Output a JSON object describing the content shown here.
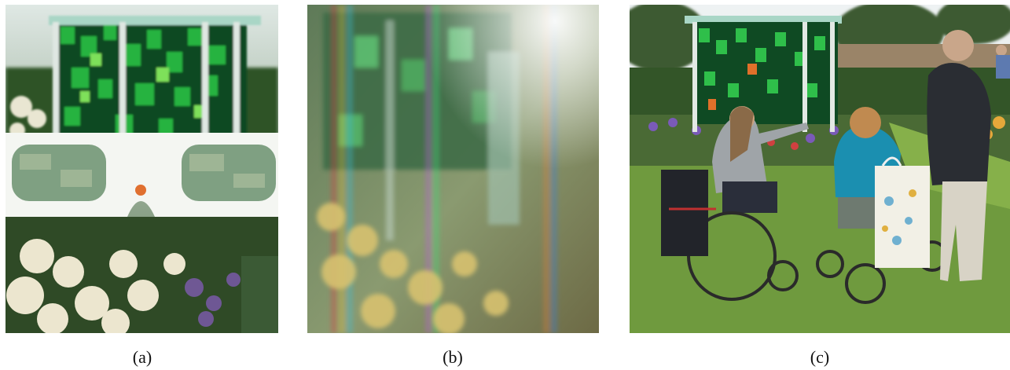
{
  "figure": {
    "panels": [
      {
        "id": "a",
        "caption": "(a)",
        "depicts": "paper-glasses-icon"
      },
      {
        "id": "b",
        "caption": "(b)",
        "depicts": "blurred-garden-icon"
      },
      {
        "id": "c",
        "caption": "(c)",
        "depicts": "wheelchair-visitors-icon"
      }
    ]
  },
  "colors": {
    "glass_green": "#1fa83a",
    "deep_green": "#0d5a22",
    "frame_white": "#f4f6f2",
    "lawn": "#6f9a3e",
    "sky": "#e7eef0",
    "jacket_teal": "#1b8fb0",
    "coat_dark": "#2a2d33"
  }
}
